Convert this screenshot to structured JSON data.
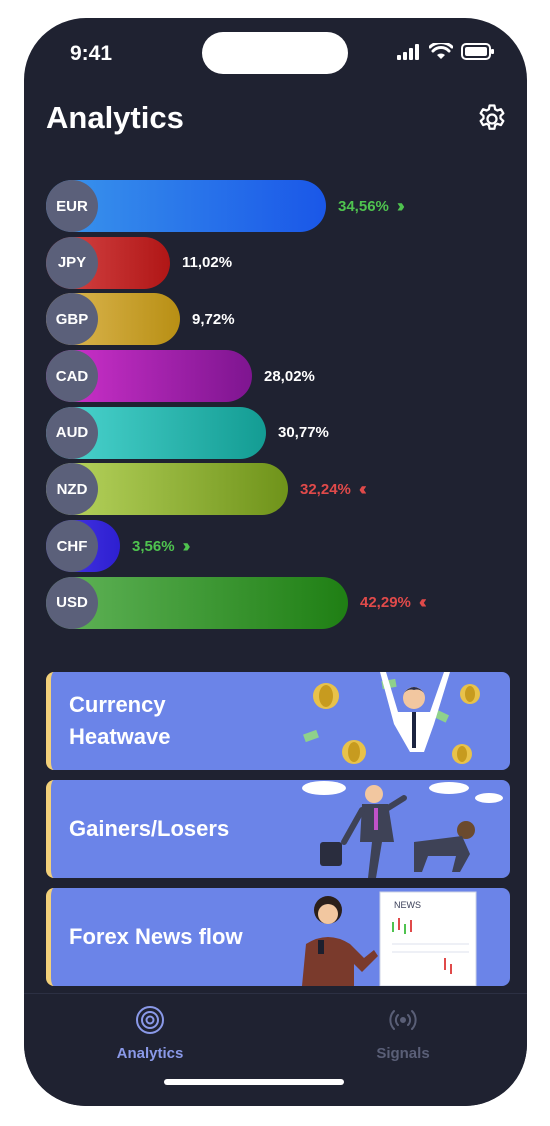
{
  "status": {
    "time": "9:41"
  },
  "header": {
    "title": "Analytics",
    "settings_icon": "gear-icon"
  },
  "colors": {
    "background": "#1f2231",
    "badge": "#5b607a",
    "up": "#4fc34f",
    "down": "#e04a4a",
    "card": "#6b84e8",
    "card_accent": "#f2d07a",
    "tab_active": "#8a99e8",
    "tab_inactive": "#5a5f77"
  },
  "currencies": [
    {
      "code": "EUR",
      "value": "34,56%",
      "trend": "up",
      "gradient": [
        "#3a96ec",
        "#1a57e8"
      ]
    },
    {
      "code": "JPY",
      "value": "11,02%",
      "trend": "none",
      "gradient": [
        "#d84a4a",
        "#b01616"
      ]
    },
    {
      "code": "GBP",
      "value": "9,72%",
      "trend": "none",
      "gradient": [
        "#e0bb58",
        "#b88f14"
      ]
    },
    {
      "code": "CAD",
      "value": "28,02%",
      "trend": "none",
      "gradient": [
        "#d233cf",
        "#7e1590"
      ]
    },
    {
      "code": "AUD",
      "value": "30,77%",
      "trend": "none",
      "gradient": [
        "#4fd8d3",
        "#139c93"
      ]
    },
    {
      "code": "NZD",
      "value": "32,24%",
      "trend": "down",
      "gradient": [
        "#bcd862",
        "#6f931a"
      ]
    },
    {
      "code": "CHF",
      "value": "3,56%",
      "trend": "up",
      "gradient": [
        "#4b3ae8",
        "#2d1fd0"
      ]
    },
    {
      "code": "USD",
      "value": "42,29%",
      "trend": "down",
      "gradient": [
        "#62b55a",
        "#1f7f14"
      ]
    }
  ],
  "cards": [
    {
      "label_line1": "Currency",
      "label_line2": "Heatwave"
    },
    {
      "label_line1": "Gainers/Losers",
      "label_line2": ""
    },
    {
      "label_line1": "Forex News flow",
      "label_line2": ""
    }
  ],
  "news_sign": "NEWS",
  "tabs": [
    {
      "label": "Analytics",
      "icon": "target-icon",
      "active": true
    },
    {
      "label": "Signals",
      "icon": "broadcast-icon",
      "active": false
    }
  ]
}
